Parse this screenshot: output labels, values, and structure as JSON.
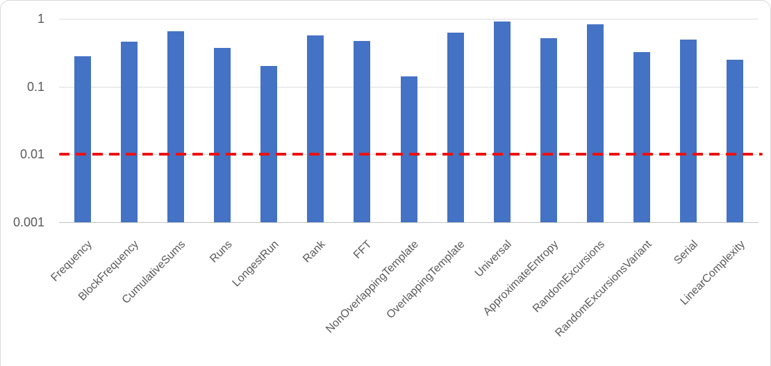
{
  "chart_data": {
    "type": "bar",
    "title": "",
    "xlabel": "",
    "ylabel": "",
    "yscale": "log",
    "ylim": [
      0.001,
      1
    ],
    "grid": true,
    "legend": "none",
    "yticks": [
      {
        "value": 1,
        "label": "1"
      },
      {
        "value": 0.1,
        "label": "0.1"
      },
      {
        "value": 0.01,
        "label": "0.01"
      },
      {
        "value": 0.001,
        "label": "0.001"
      }
    ],
    "categories": [
      "Frequency",
      "BlockFrequency",
      "CumulativeSums",
      "Runs",
      "LongestRun",
      "Rank",
      "FFT",
      "NonOverlappingTemplate",
      "OverlappingTemplate",
      "Universal",
      "ApproximateEntropy",
      "RandomExcursions",
      "RandomExcursionsVariant",
      "Serial",
      "LinearComplexity"
    ],
    "values": [
      0.28,
      0.46,
      0.65,
      0.37,
      0.2,
      0.57,
      0.47,
      0.14,
      0.63,
      0.91,
      0.52,
      0.82,
      0.32,
      0.49,
      0.25
    ],
    "bar_color": "#4472c4",
    "threshold_line": {
      "value": 0.01,
      "style": "dashed",
      "color": "#ed1111"
    },
    "tick_text_color": "#595959"
  }
}
